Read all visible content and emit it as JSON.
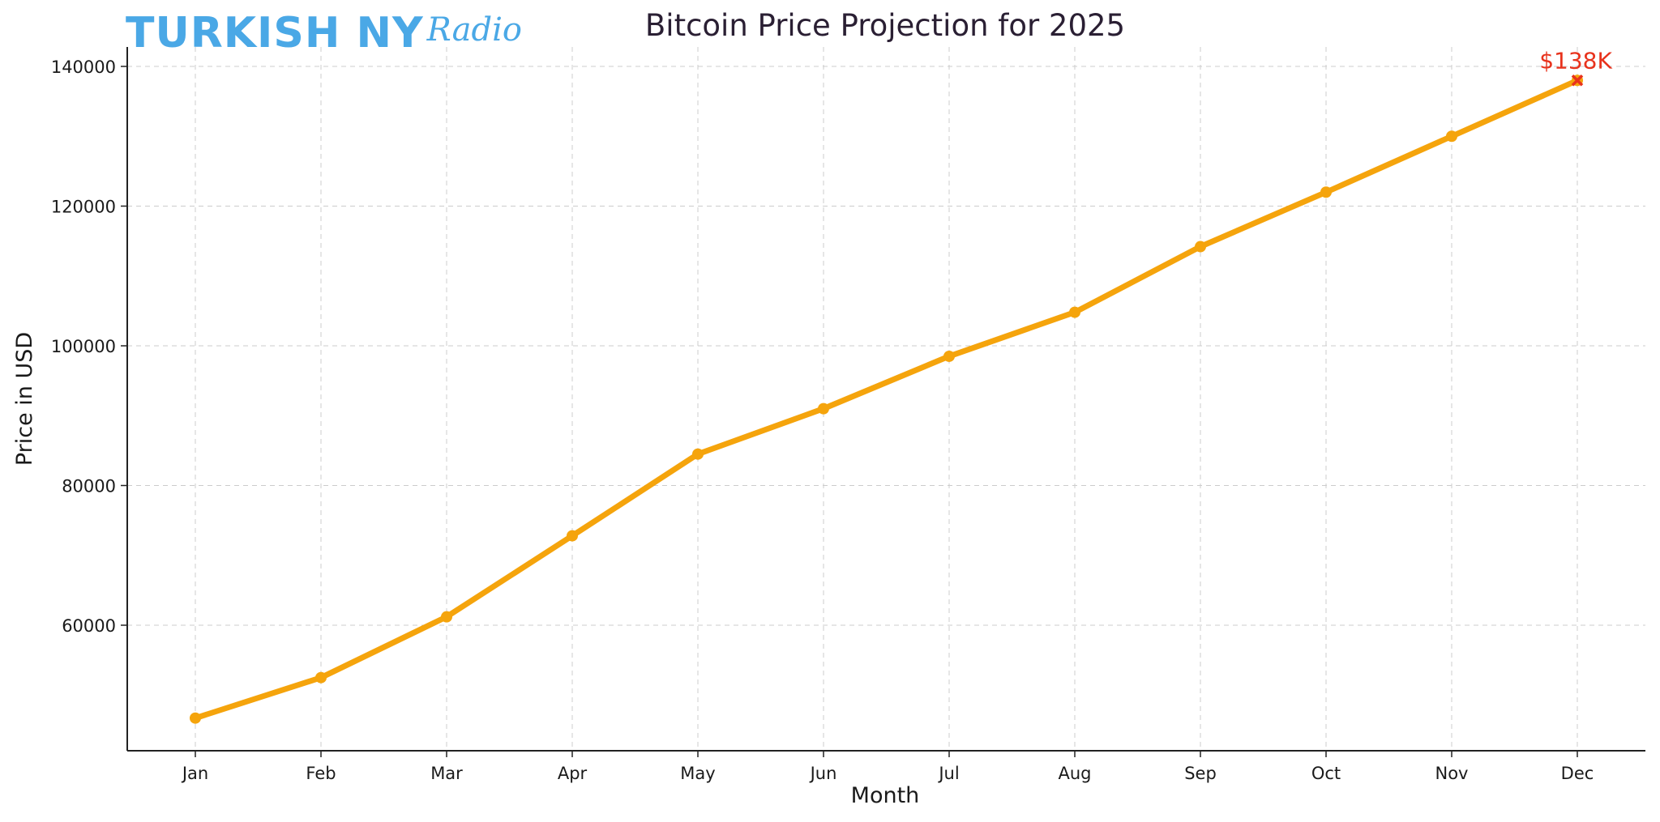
{
  "logo": {
    "main_text": "TURKISH NY",
    "script_text": "Radio",
    "color": "#4aa8e6"
  },
  "chart_data": {
    "type": "line",
    "title": "Bitcoin Price Projection for 2025",
    "xlabel": "Month",
    "ylabel": "Price in USD",
    "categories": [
      "Jan",
      "Feb",
      "Mar",
      "Apr",
      "May",
      "Jun",
      "Jul",
      "Aug",
      "Sep",
      "Oct",
      "Nov",
      "Dec"
    ],
    "series": [
      {
        "values": [
          46700,
          52500,
          61200,
          72800,
          84500,
          91000,
          98500,
          104800,
          114200,
          122000,
          130000,
          138000
        ],
        "color": "#f5a40c",
        "marker": "circle"
      }
    ],
    "ylim": [
      42000,
      142000
    ],
    "yticks": [
      60000,
      80000,
      100000,
      120000,
      140000
    ],
    "grid": true,
    "grid_style": "dashed",
    "annotation": {
      "text": "$138K",
      "category": "Dec",
      "value": 138000,
      "color": "#e8321c",
      "marker": "x"
    }
  }
}
